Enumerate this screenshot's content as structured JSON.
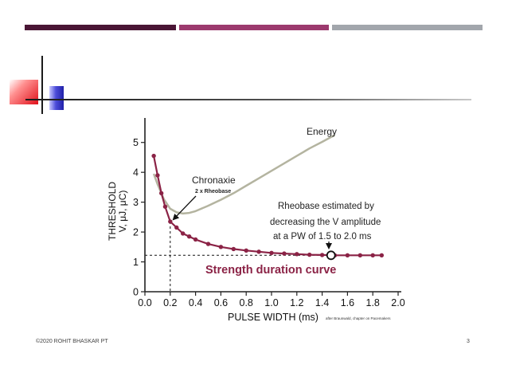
{
  "footer": {
    "copyright": "©2020 ROHIT BHASKAR PT",
    "page_number": "3"
  },
  "colors": {
    "bar_dark": "#4a1535",
    "bar_mid": "#9c3a6e",
    "bar_gray": "#a2a6ac",
    "curve": "#8b2346",
    "energy": "#b4b4a0"
  },
  "chart_data": {
    "type": "line",
    "title": "Strength duration curve",
    "xlabel": "PULSE WIDTH (ms)",
    "ylabel_line1": "THRESHOLD",
    "ylabel_line2": "V, μJ, μC)",
    "source_note": "after Braunwald, chapter on Pacemakers",
    "xlim": [
      0,
      2.0
    ],
    "ylim": [
      0,
      5.5
    ],
    "x_ticks": [
      "0.0",
      "0.2",
      "0.4",
      "0.6",
      "0.8",
      "1.0",
      "1.2",
      "1.4",
      "1.6",
      "1.8",
      "2.0"
    ],
    "y_ticks": [
      "0",
      "1",
      "2",
      "3",
      "4",
      "5"
    ],
    "series": [
      {
        "name": "Strength duration curve",
        "x": [
          0.07,
          0.1,
          0.13,
          0.16,
          0.2,
          0.25,
          0.3,
          0.35,
          0.4,
          0.5,
          0.6,
          0.7,
          0.8,
          0.9,
          1.0,
          1.1,
          1.2,
          1.3,
          1.4,
          1.5,
          1.6,
          1.7,
          1.8,
          1.87
        ],
        "y": [
          4.55,
          3.9,
          3.3,
          2.85,
          2.35,
          2.15,
          1.95,
          1.85,
          1.75,
          1.6,
          1.5,
          1.43,
          1.38,
          1.34,
          1.3,
          1.28,
          1.26,
          1.24,
          1.23,
          1.22,
          1.22,
          1.22,
          1.22,
          1.22
        ]
      },
      {
        "name": "Energy",
        "x": [
          0.07,
          0.1,
          0.15,
          0.2,
          0.25,
          0.3,
          0.35,
          0.4,
          0.5,
          0.6,
          0.7,
          0.8,
          0.9,
          1.0,
          1.1,
          1.2,
          1.3,
          1.4,
          1.5
        ],
        "y": [
          3.95,
          3.6,
          3.1,
          2.78,
          2.66,
          2.62,
          2.64,
          2.7,
          2.88,
          3.08,
          3.3,
          3.55,
          3.8,
          4.05,
          4.3,
          4.55,
          4.8,
          5.02,
          5.25
        ]
      }
    ],
    "rheobase_level": 1.22,
    "chronaxie_x": 0.2,
    "rheobase_marker": {
      "x": 1.47,
      "y": 1.22
    },
    "annotations": {
      "energy": "Energy",
      "chronaxie": "Chronaxie",
      "chronaxie_sub": "2 x Rheobase",
      "rheobase_1": "Rheobase estimated by",
      "rheobase_2": "decreasing the V amplitude",
      "rheobase_3": "at a PW of 1.5 to 2.0 ms"
    }
  }
}
